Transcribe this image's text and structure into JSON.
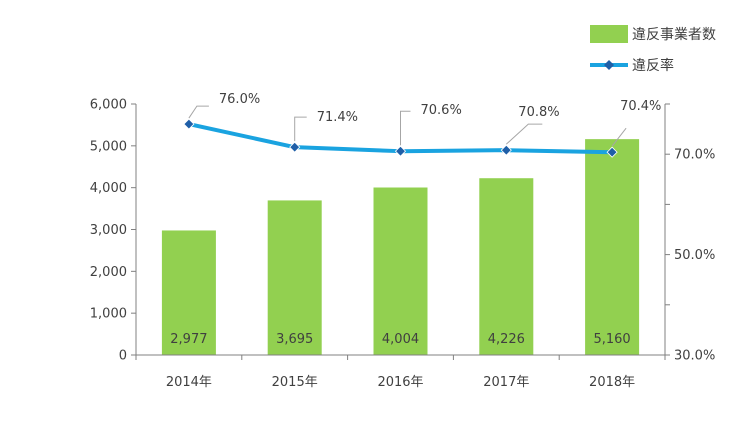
{
  "chart_data": {
    "type": "bar",
    "categories": [
      "2014年",
      "2015年",
      "2016年",
      "2017年",
      "2018年"
    ],
    "series": [
      {
        "name": "違反事業者数",
        "type": "bar",
        "axis": "left",
        "values": [
          2977,
          3695,
          4004,
          4226,
          5160
        ],
        "labels": [
          "2,977",
          "3,695",
          "4,004",
          "4,226",
          "5,160"
        ]
      },
      {
        "name": "違反率",
        "type": "line",
        "axis": "right",
        "values": [
          76.0,
          71.4,
          70.6,
          70.8,
          70.4
        ],
        "labels": [
          "76.0%",
          "71.4%",
          "70.6%",
          "70.8%",
          "70.4%"
        ]
      }
    ],
    "y_left": {
      "min": 0,
      "max": 6000,
      "ticks": [
        "0",
        "1,000",
        "2,000",
        "3,000",
        "4,000",
        "5,000",
        "6,000"
      ]
    },
    "y_right": {
      "min": 30,
      "max": 80,
      "ticks": [
        "30.0%",
        "50.0%",
        "70.0%"
      ]
    },
    "legend_position": "top-right",
    "grid": false,
    "colors": {
      "bar": "#92d050",
      "line": "#1aa3e0",
      "marker": "#1f5fa8"
    }
  }
}
